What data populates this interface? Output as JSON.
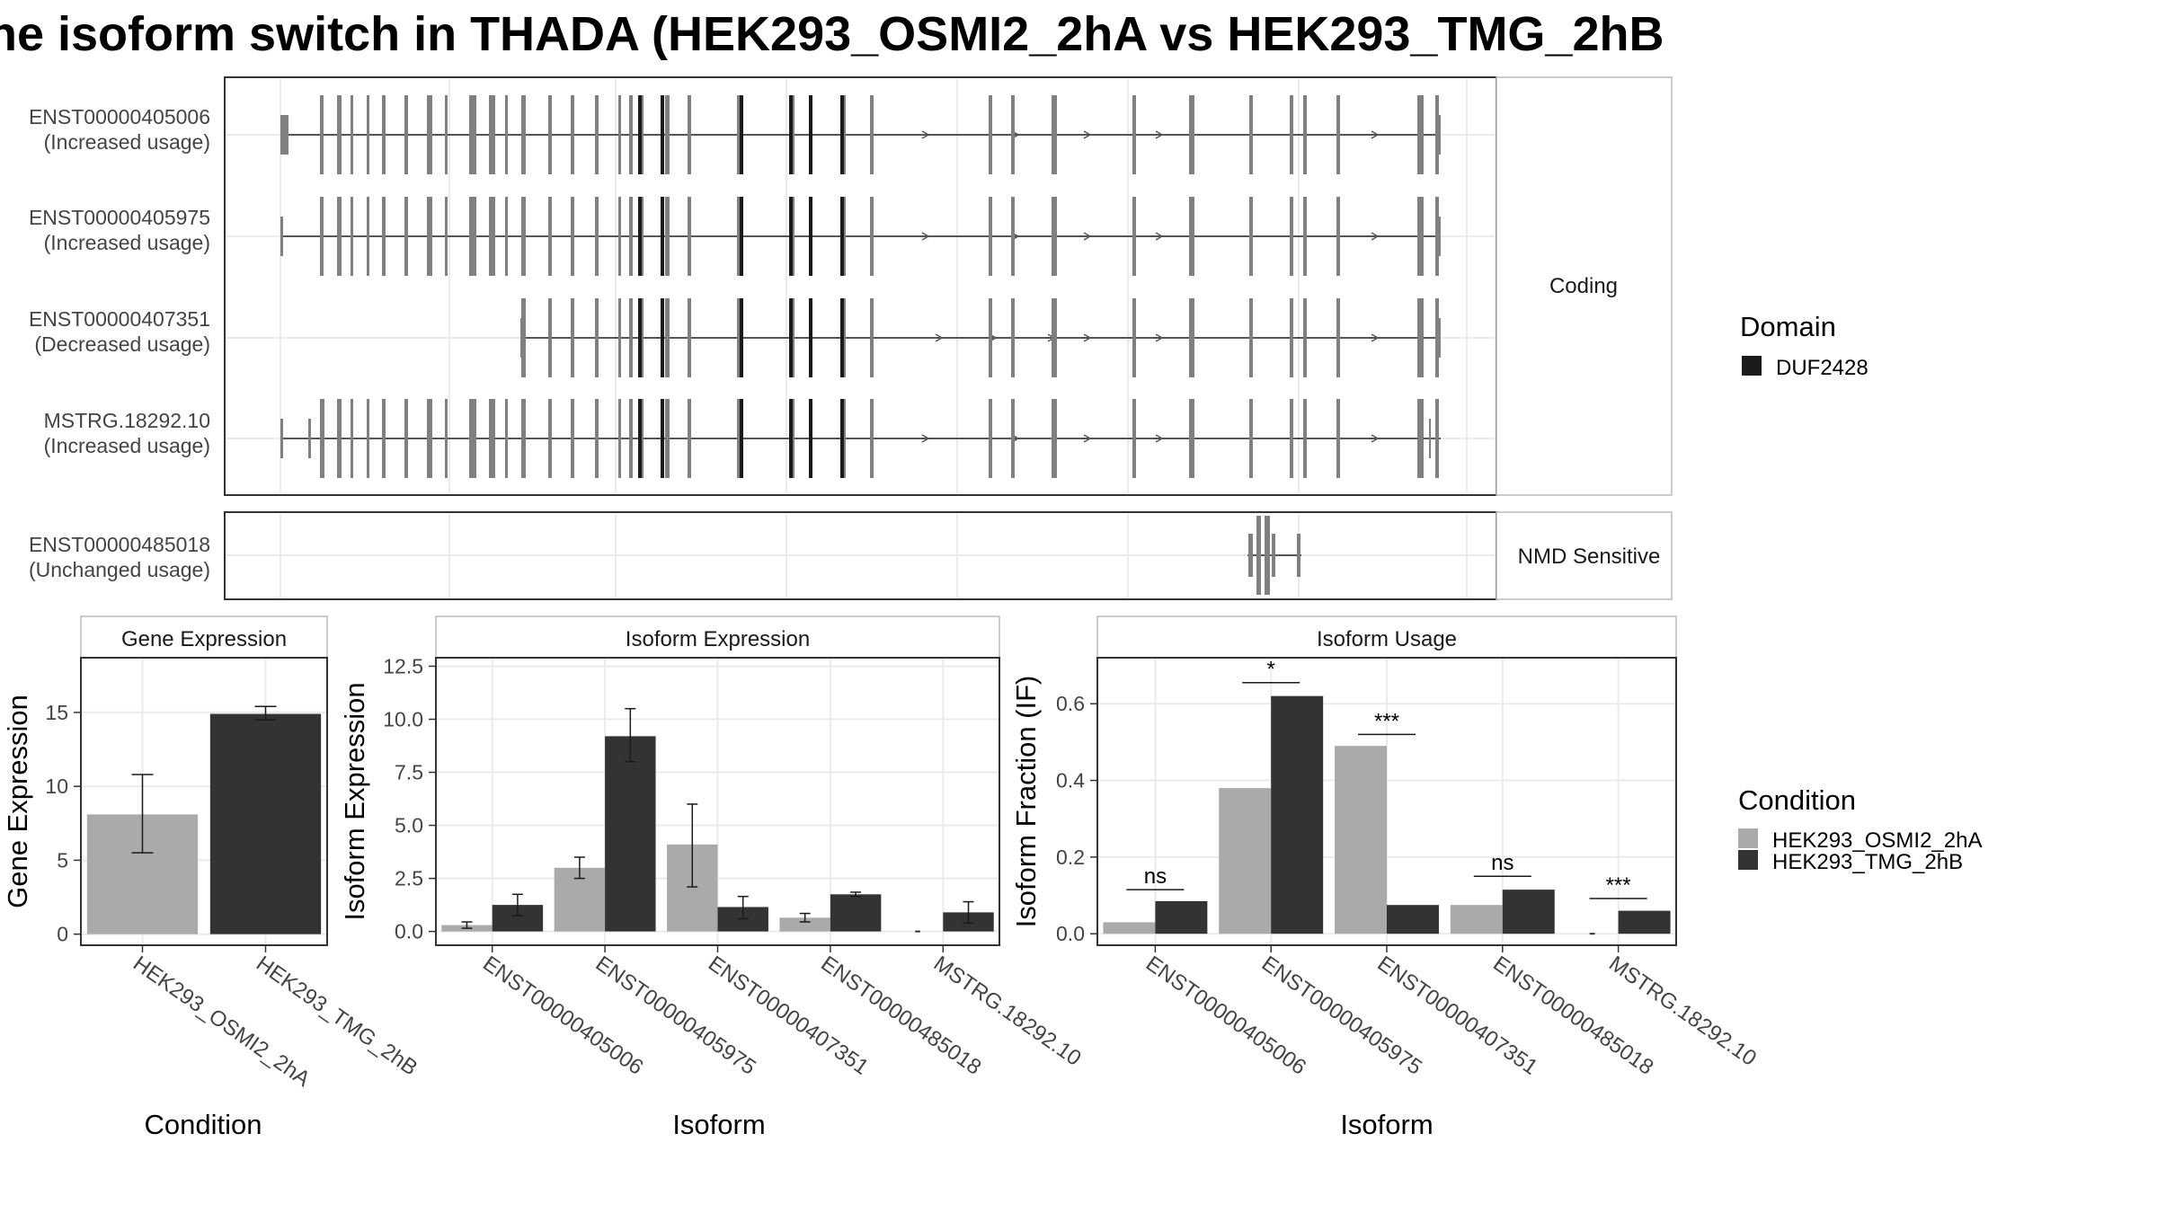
{
  "title": "he isoform switch in THADA (HEK293_OSMI2_2hA vs HEK293_TMG_2hB",
  "colors": {
    "cond_a": "#aaaaaa",
    "cond_b": "#333333",
    "exon": "#808080",
    "domain": "#1a1a1a",
    "intron": "#555555",
    "panel_border": "#333333",
    "grid": "#ebebeb",
    "strip_fill": "#ffffff",
    "strip_border": "#bbbbbb"
  },
  "structure": {
    "groups": [
      {
        "label": "Coding",
        "transcripts": [
          {
            "id": "ENST00000405006",
            "usage": "(Increased usage)"
          },
          {
            "id": "ENST00000405975",
            "usage": "(Increased usage)"
          },
          {
            "id": "ENST00000407351",
            "usage": "(Decreased usage)"
          },
          {
            "id": "MSTRG.18292.10",
            "usage": "(Increased usage)"
          }
        ]
      },
      {
        "label": "NMD Sensitive",
        "transcripts": [
          {
            "id": "ENST00000485018",
            "usage": "(Unchanged usage)"
          }
        ]
      }
    ],
    "legend": {
      "title": "Domain",
      "items": [
        {
          "label": "DUF2428",
          "color": "#1a1a1a"
        }
      ]
    }
  },
  "condition_legend": {
    "title": "Condition",
    "items": [
      {
        "label": "HEK293_OSMI2_2hA",
        "color": "#aaaaaa"
      },
      {
        "label": "HEK293_TMG_2hB",
        "color": "#333333"
      }
    ]
  },
  "chart_data": [
    {
      "type": "bar",
      "title": "Gene Expression",
      "xlabel": "Condition",
      "ylabel": "Gene Expression",
      "categories": [
        "HEK293_OSMI2_2hA",
        "HEK293_TMG_2hB"
      ],
      "values": [
        8.1,
        14.9
      ],
      "errors": [
        [
          5.5,
          10.8
        ],
        [
          14.5,
          15.4
        ]
      ],
      "ylim": [
        -0.75,
        18.7
      ],
      "yticks": [
        0,
        5,
        10,
        15
      ],
      "ytick_labels": [
        "0",
        "5",
        "10",
        "15"
      ]
    },
    {
      "type": "bar",
      "title": "Isoform Expression",
      "xlabel": "Isoform",
      "ylabel": "Isoform Expression",
      "categories": [
        "ENST00000405006",
        "ENST00000405975",
        "ENST00000407351",
        "ENST00000485018",
        "MSTRG.18292.10"
      ],
      "series": [
        {
          "name": "HEK293_OSMI2_2hA",
          "values": [
            0.3,
            3.0,
            4.1,
            0.65,
            0.0
          ],
          "errors": [
            [
              0.15,
              0.45
            ],
            [
              2.5,
              3.5
            ],
            [
              2.1,
              6.0
            ],
            [
              0.45,
              0.85
            ],
            [
              0.0,
              0.0
            ]
          ]
        },
        {
          "name": "HEK293_TMG_2hB",
          "values": [
            1.25,
            9.2,
            1.15,
            1.75,
            0.9
          ],
          "errors": [
            [
              0.75,
              1.75
            ],
            [
              8.0,
              10.5
            ],
            [
              0.6,
              1.65
            ],
            [
              1.65,
              1.85
            ],
            [
              0.4,
              1.4
            ]
          ]
        }
      ],
      "ylim": [
        -0.65,
        12.9
      ],
      "yticks": [
        0,
        2.5,
        5,
        7.5,
        10,
        12.5
      ],
      "ytick_labels": [
        "0.0",
        "2.5",
        "5.0",
        "7.5",
        "10.0",
        "12.5"
      ]
    },
    {
      "type": "bar",
      "title": "Isoform Usage",
      "xlabel": "Isoform",
      "ylabel": "Isoform Fraction (IF)",
      "categories": [
        "ENST00000405006",
        "ENST00000405975",
        "ENST00000407351",
        "ENST00000485018",
        "MSTRG.18292.10"
      ],
      "series": [
        {
          "name": "HEK293_OSMI2_2hA",
          "values": [
            0.03,
            0.38,
            0.49,
            0.075,
            0.0
          ]
        },
        {
          "name": "HEK293_TMG_2hB",
          "values": [
            0.085,
            0.62,
            0.075,
            0.115,
            0.06
          ]
        }
      ],
      "significance": [
        {
          "category": 0,
          "label": "ns",
          "y": 0.115
        },
        {
          "category": 1,
          "label": "*",
          "y": 0.655
        },
        {
          "category": 2,
          "label": "***",
          "y": 0.52
        },
        {
          "category": 3,
          "label": "ns",
          "y": 0.15
        },
        {
          "category": 4,
          "label": "***",
          "y": 0.092
        }
      ],
      "ylim": [
        -0.03,
        0.72
      ],
      "yticks": [
        0,
        0.2,
        0.4,
        0.6
      ],
      "ytick_labels": [
        "0.0",
        "0.2",
        "0.4",
        "0.6"
      ]
    }
  ]
}
